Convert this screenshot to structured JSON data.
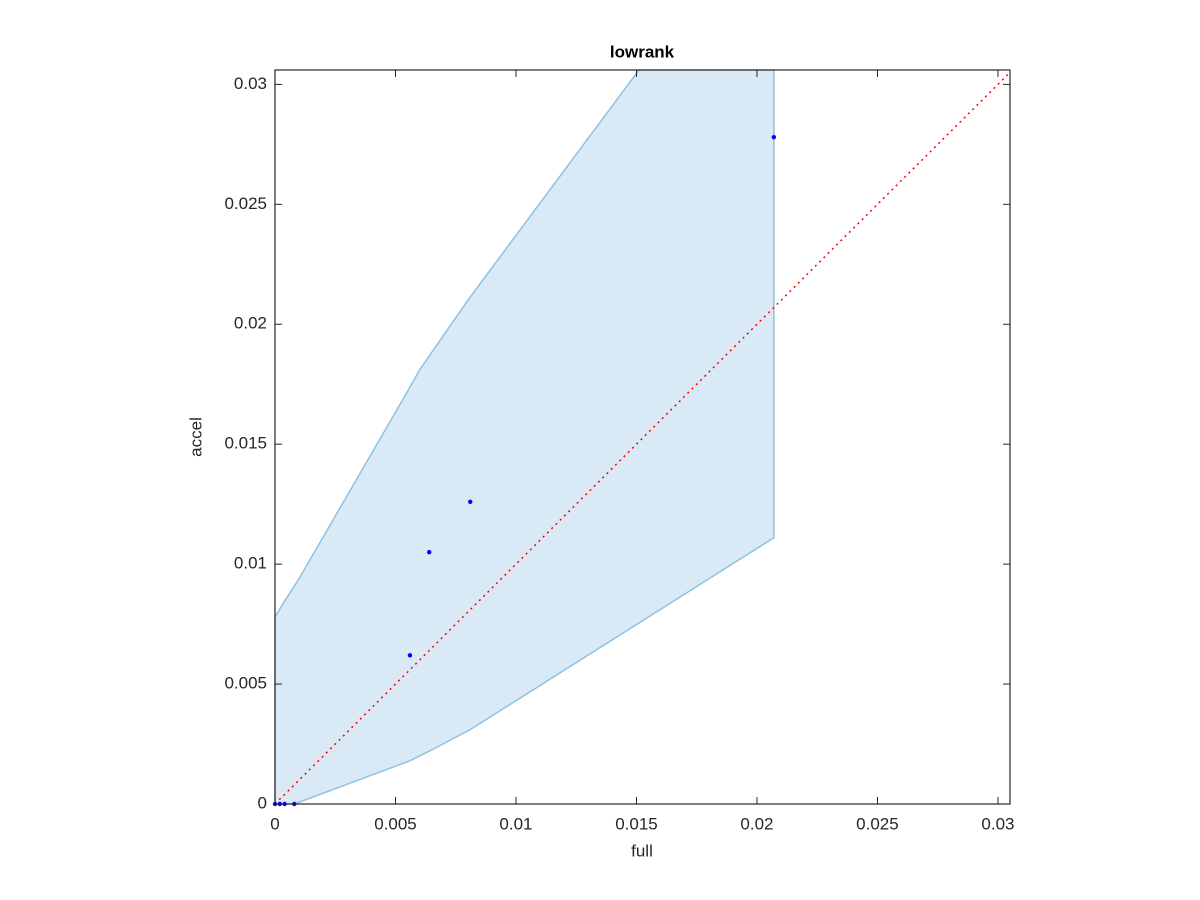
{
  "chart_data": {
    "type": "scatter",
    "title": "lowrank",
    "xlabel": "full",
    "ylabel": "accel",
    "xlim": [
      0,
      0.0305
    ],
    "ylim": [
      0,
      0.0306
    ],
    "xticks": [
      0,
      0.005,
      0.01,
      0.015,
      0.02,
      0.025,
      0.03
    ],
    "yticks": [
      0,
      0.005,
      0.01,
      0.015,
      0.02,
      0.025,
      0.03
    ],
    "band": {
      "color": "#d9e9f5",
      "edge_color": "#8fc1e3",
      "x": [
        0,
        0.0003,
        0.001,
        0.0055,
        0.006,
        0.008,
        0.0151,
        0.0207,
        0.0207,
        0.0081,
        0.0064,
        0.0056,
        0.0008,
        0
      ],
      "values": [
        0.0078,
        0.0083,
        0.0094,
        0.0172,
        0.0181,
        0.021,
        0.0306,
        0.0306,
        0.0111,
        0.0031,
        0.0022,
        0.0018,
        0,
        0
      ]
    },
    "reference_line": {
      "color": "#ff0000",
      "x": [
        0,
        0.0305
      ],
      "values": [
        0,
        0.0305
      ]
    },
    "points": {
      "color": "#0000ff",
      "x": [
        0.0207,
        0.0081,
        0.0064,
        0.0056,
        0,
        0.0002,
        0.0004,
        0.0008
      ],
      "values": [
        0.0278,
        0.0126,
        0.0105,
        0.0062,
        0,
        0,
        0,
        0
      ]
    }
  }
}
